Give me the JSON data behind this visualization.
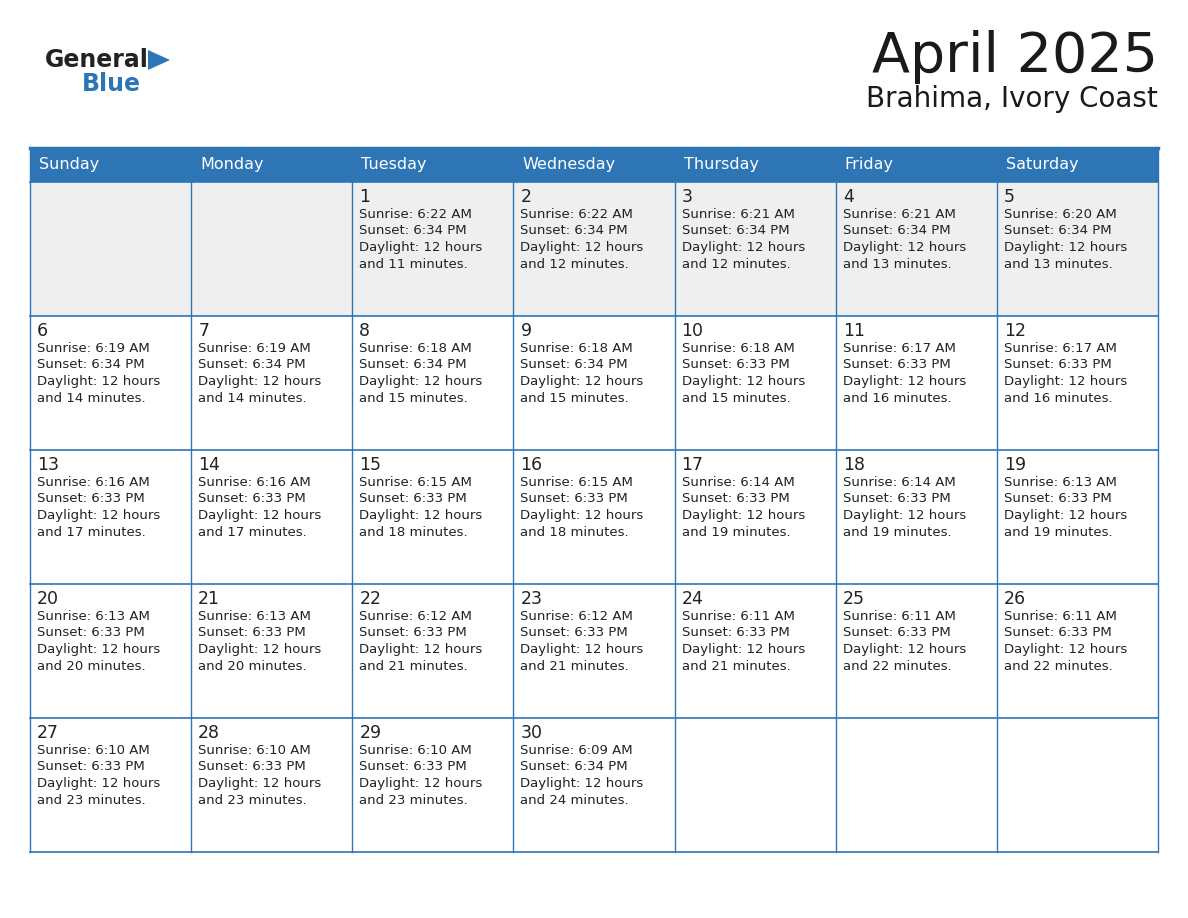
{
  "title": "April 2025",
  "subtitle": "Brahima, Ivory Coast",
  "header_bg": "#2E75B6",
  "header_text_color": "#FFFFFF",
  "cell_bg_white": "#FFFFFF",
  "cell_bg_light": "#EFEFEF",
  "border_color": "#2E75B6",
  "border_color_inner": "#4472A8",
  "title_color": "#1a1a1a",
  "subtitle_color": "#1a1a1a",
  "day_names": [
    "Sunday",
    "Monday",
    "Tuesday",
    "Wednesday",
    "Thursday",
    "Friday",
    "Saturday"
  ],
  "weeks": [
    [
      {
        "day": "",
        "sunrise": "",
        "sunset": "",
        "daylight": ""
      },
      {
        "day": "",
        "sunrise": "",
        "sunset": "",
        "daylight": ""
      },
      {
        "day": "1",
        "sunrise": "6:22 AM",
        "sunset": "6:34 PM",
        "daylight": "12 hours and 11 minutes."
      },
      {
        "day": "2",
        "sunrise": "6:22 AM",
        "sunset": "6:34 PM",
        "daylight": "12 hours and 12 minutes."
      },
      {
        "day": "3",
        "sunrise": "6:21 AM",
        "sunset": "6:34 PM",
        "daylight": "12 hours and 12 minutes."
      },
      {
        "day": "4",
        "sunrise": "6:21 AM",
        "sunset": "6:34 PM",
        "daylight": "12 hours and 13 minutes."
      },
      {
        "day": "5",
        "sunrise": "6:20 AM",
        "sunset": "6:34 PM",
        "daylight": "12 hours and 13 minutes."
      }
    ],
    [
      {
        "day": "6",
        "sunrise": "6:19 AM",
        "sunset": "6:34 PM",
        "daylight": "12 hours and 14 minutes."
      },
      {
        "day": "7",
        "sunrise": "6:19 AM",
        "sunset": "6:34 PM",
        "daylight": "12 hours and 14 minutes."
      },
      {
        "day": "8",
        "sunrise": "6:18 AM",
        "sunset": "6:34 PM",
        "daylight": "12 hours and 15 minutes."
      },
      {
        "day": "9",
        "sunrise": "6:18 AM",
        "sunset": "6:34 PM",
        "daylight": "12 hours and 15 minutes."
      },
      {
        "day": "10",
        "sunrise": "6:18 AM",
        "sunset": "6:33 PM",
        "daylight": "12 hours and 15 minutes."
      },
      {
        "day": "11",
        "sunrise": "6:17 AM",
        "sunset": "6:33 PM",
        "daylight": "12 hours and 16 minutes."
      },
      {
        "day": "12",
        "sunrise": "6:17 AM",
        "sunset": "6:33 PM",
        "daylight": "12 hours and 16 minutes."
      }
    ],
    [
      {
        "day": "13",
        "sunrise": "6:16 AM",
        "sunset": "6:33 PM",
        "daylight": "12 hours and 17 minutes."
      },
      {
        "day": "14",
        "sunrise": "6:16 AM",
        "sunset": "6:33 PM",
        "daylight": "12 hours and 17 minutes."
      },
      {
        "day": "15",
        "sunrise": "6:15 AM",
        "sunset": "6:33 PM",
        "daylight": "12 hours and 18 minutes."
      },
      {
        "day": "16",
        "sunrise": "6:15 AM",
        "sunset": "6:33 PM",
        "daylight": "12 hours and 18 minutes."
      },
      {
        "day": "17",
        "sunrise": "6:14 AM",
        "sunset": "6:33 PM",
        "daylight": "12 hours and 19 minutes."
      },
      {
        "day": "18",
        "sunrise": "6:14 AM",
        "sunset": "6:33 PM",
        "daylight": "12 hours and 19 minutes."
      },
      {
        "day": "19",
        "sunrise": "6:13 AM",
        "sunset": "6:33 PM",
        "daylight": "12 hours and 19 minutes."
      }
    ],
    [
      {
        "day": "20",
        "sunrise": "6:13 AM",
        "sunset": "6:33 PM",
        "daylight": "12 hours and 20 minutes."
      },
      {
        "day": "21",
        "sunrise": "6:13 AM",
        "sunset": "6:33 PM",
        "daylight": "12 hours and 20 minutes."
      },
      {
        "day": "22",
        "sunrise": "6:12 AM",
        "sunset": "6:33 PM",
        "daylight": "12 hours and 21 minutes."
      },
      {
        "day": "23",
        "sunrise": "6:12 AM",
        "sunset": "6:33 PM",
        "daylight": "12 hours and 21 minutes."
      },
      {
        "day": "24",
        "sunrise": "6:11 AM",
        "sunset": "6:33 PM",
        "daylight": "12 hours and 21 minutes."
      },
      {
        "day": "25",
        "sunrise": "6:11 AM",
        "sunset": "6:33 PM",
        "daylight": "12 hours and 22 minutes."
      },
      {
        "day": "26",
        "sunrise": "6:11 AM",
        "sunset": "6:33 PM",
        "daylight": "12 hours and 22 minutes."
      }
    ],
    [
      {
        "day": "27",
        "sunrise": "6:10 AM",
        "sunset": "6:33 PM",
        "daylight": "12 hours and 23 minutes."
      },
      {
        "day": "28",
        "sunrise": "6:10 AM",
        "sunset": "6:33 PM",
        "daylight": "12 hours and 23 minutes."
      },
      {
        "day": "29",
        "sunrise": "6:10 AM",
        "sunset": "6:33 PM",
        "daylight": "12 hours and 23 minutes."
      },
      {
        "day": "30",
        "sunrise": "6:09 AM",
        "sunset": "6:34 PM",
        "daylight": "12 hours and 24 minutes."
      },
      {
        "day": "",
        "sunrise": "",
        "sunset": "",
        "daylight": ""
      },
      {
        "day": "",
        "sunrise": "",
        "sunset": "",
        "daylight": ""
      },
      {
        "day": "",
        "sunrise": "",
        "sunset": "",
        "daylight": ""
      }
    ]
  ],
  "logo_general_color": "#222222",
  "logo_blue_color": "#2E75B6",
  "fig_width": 11.88,
  "fig_height": 9.18,
  "dpi": 100
}
